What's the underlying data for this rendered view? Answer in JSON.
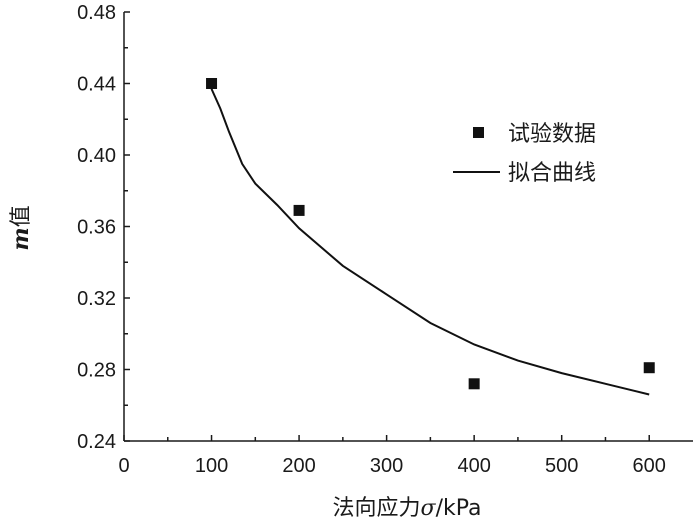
{
  "chart_data": {
    "type": "scatter",
    "xlabel_prefix": "法向应力",
    "xlabel_symbol": "σ",
    "xlabel_unit": "/kPa",
    "ylabel_symbol": "m",
    "ylabel_suffix": "值",
    "xlim": [
      0,
      650
    ],
    "ylim": [
      0.24,
      0.48
    ],
    "x_ticks": [
      "0",
      "100",
      "200",
      "300",
      "400",
      "500",
      "600"
    ],
    "y_ticks": [
      "0.24",
      "0.28",
      "0.32",
      "0.36",
      "0.40",
      "0.44",
      "0.48"
    ],
    "series": [
      {
        "name": "试验数据",
        "type": "scatter",
        "x": [
          100,
          200,
          400,
          600
        ],
        "y": [
          0.44,
          0.369,
          0.272,
          0.281
        ]
      },
      {
        "name": "拟合曲线",
        "type": "line",
        "x": [
          100,
          110,
          120,
          135,
          150,
          175,
          200,
          250,
          300,
          350,
          400,
          450,
          500,
          550,
          600
        ],
        "y": [
          0.437,
          0.426,
          0.413,
          0.395,
          0.384,
          0.372,
          0.359,
          0.338,
          0.322,
          0.306,
          0.294,
          0.285,
          0.278,
          0.272,
          0.266
        ]
      }
    ],
    "legend_position": "right"
  }
}
